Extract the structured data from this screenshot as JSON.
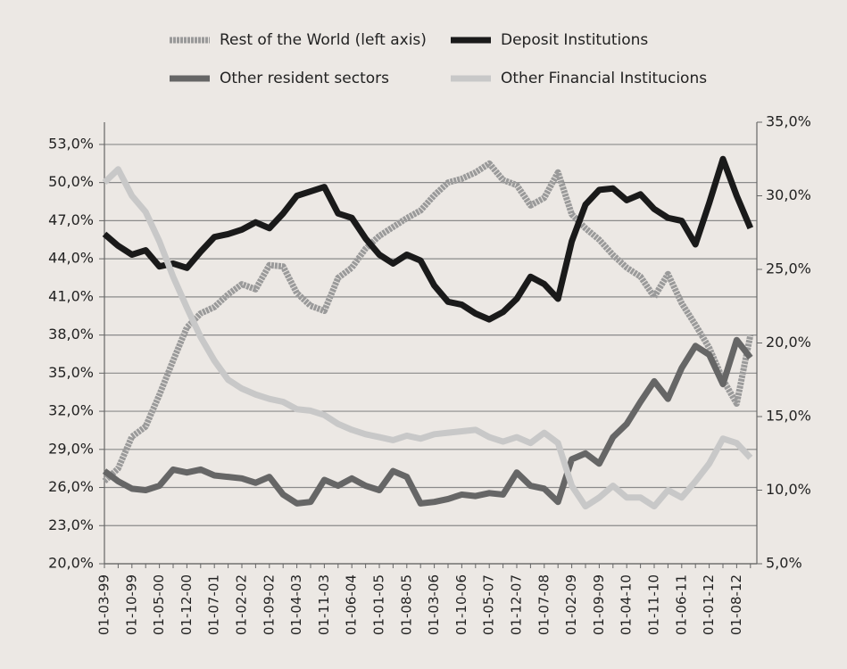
{
  "chart_data": {
    "type": "line",
    "categories": [
      "01-03-99",
      null,
      "01-10-99",
      null,
      "01-05-00",
      null,
      "01-12-00",
      null,
      "01-07-01",
      null,
      "01-02-02",
      null,
      "01-09-02",
      null,
      "01-04-03",
      null,
      "01-11-03",
      null,
      "01-06-04",
      null,
      "01-01-05",
      null,
      "01-08-05",
      null,
      "01-03-06",
      null,
      "01-10-06",
      null,
      "01-05-07",
      null,
      "01-12-07",
      null,
      "01-07-08",
      null,
      "01-02-09",
      null,
      "01-09-09",
      null,
      "01-04-10",
      null,
      "01-11-10",
      null,
      "01-06-11",
      null,
      "01-01-12",
      null,
      "01-08-12",
      null
    ],
    "series": [
      {
        "name": "Rest of the World (left axis)",
        "color": "#9a9a9a",
        "axis": "y",
        "values": [
          26.5,
          27.5,
          30,
          30.8,
          33.3,
          36,
          38.6,
          39.7,
          40.2,
          41.2,
          42,
          41.6,
          43.5,
          43.4,
          41.3,
          40.3,
          39.9,
          42.5,
          43.3,
          44.8,
          45.8,
          46.5,
          47.2,
          47.8,
          49,
          50,
          50.3,
          50.8,
          51.5,
          50.2,
          49.8,
          48.2,
          48.8,
          50.8,
          47.5,
          46.4,
          45.5,
          44.3,
          43.3,
          42.6,
          41,
          42.8,
          40.5,
          38.8,
          37,
          34.5,
          32.6,
          38
        ]
      },
      {
        "name": "Deposit Institutions",
        "color": "#1a1a1a",
        "axis": "y2",
        "values": [
          27.4,
          26.6,
          26,
          26.3,
          25.2,
          25.4,
          25.1,
          26.2,
          27.2,
          27.4,
          27.7,
          28.2,
          27.8,
          28.8,
          30,
          30.3,
          30.6,
          28.8,
          28.5,
          27.1,
          26,
          25.4,
          26,
          25.6,
          23.9,
          22.8,
          22.6,
          22,
          21.6,
          22.1,
          23,
          24.5,
          24,
          23,
          26.9,
          29.4,
          30.4,
          30.5,
          29.7,
          30.1,
          29.1,
          28.5,
          28.3,
          26.7,
          29.5,
          32.5,
          30,
          27.8
        ]
      },
      {
        "name": "Other resident sectors",
        "color": "#666666",
        "axis": "y2",
        "values": [
          11.3,
          10.6,
          10.1,
          10,
          10.3,
          11.4,
          11.2,
          11.4,
          11,
          10.9,
          10.8,
          10.5,
          10.9,
          9.7,
          9.1,
          9.2,
          10.7,
          10.3,
          10.8,
          10.3,
          10,
          11.3,
          10.9,
          9.1,
          9.2,
          9.4,
          9.7,
          9.6,
          9.8,
          9.7,
          11.2,
          10.3,
          10.1,
          9.2,
          12.1,
          12.5,
          11.8,
          13.6,
          14.5,
          16,
          17.4,
          16.2,
          18.3,
          19.8,
          19.2,
          17.2,
          20.2,
          19
        ]
      },
      {
        "name": "Other Financial Institucions",
        "color": "#c8c8c8",
        "axis": "y2",
        "values": [
          30.9,
          31.8,
          30,
          28.9,
          26.9,
          24.5,
          22.4,
          20.4,
          18.8,
          17.5,
          16.9,
          16.5,
          16.2,
          16,
          15.5,
          15.4,
          15.1,
          14.5,
          14.1,
          13.8,
          13.6,
          13.4,
          13.7,
          13.5,
          13.8,
          13.9,
          14,
          14.1,
          13.6,
          13.3,
          13.6,
          13.2,
          13.9,
          13.2,
          10.3,
          8.9,
          9.5,
          10.3,
          9.5,
          9.5,
          8.9,
          10,
          9.5,
          10.6,
          11.8,
          13.5,
          13.2,
          12.2
        ]
      }
    ],
    "ylim": [
      20,
      54.75
    ],
    "yticks": [
      {
        "value": 20,
        "label": "20,0%"
      },
      {
        "value": 23,
        "label": "23,0%"
      },
      {
        "value": 26,
        "label": "26,0%"
      },
      {
        "value": 29,
        "label": "29,0%"
      },
      {
        "value": 32,
        "label": "32,0%"
      },
      {
        "value": 35,
        "label": "35,0%"
      },
      {
        "value": 38,
        "label": "38,0%"
      },
      {
        "value": 41,
        "label": "41,0%"
      },
      {
        "value": 44,
        "label": "44,0%"
      },
      {
        "value": 47,
        "label": "47,0%"
      },
      {
        "value": 50,
        "label": "50,0%"
      },
      {
        "value": 53,
        "label": "53,0%"
      }
    ],
    "y2lim": [
      5,
      35
    ],
    "y2ticks": [
      {
        "value": 5,
        "label": "5,0%"
      },
      {
        "value": 10,
        "label": "10,0%"
      },
      {
        "value": 15,
        "label": "15,0%"
      },
      {
        "value": 20,
        "label": "20,0%"
      },
      {
        "value": 25,
        "label": "25,0%"
      },
      {
        "value": 30,
        "label": "30,0%"
      },
      {
        "value": 35,
        "label": "35,0%"
      }
    ],
    "grid": true,
    "legend": "top"
  }
}
